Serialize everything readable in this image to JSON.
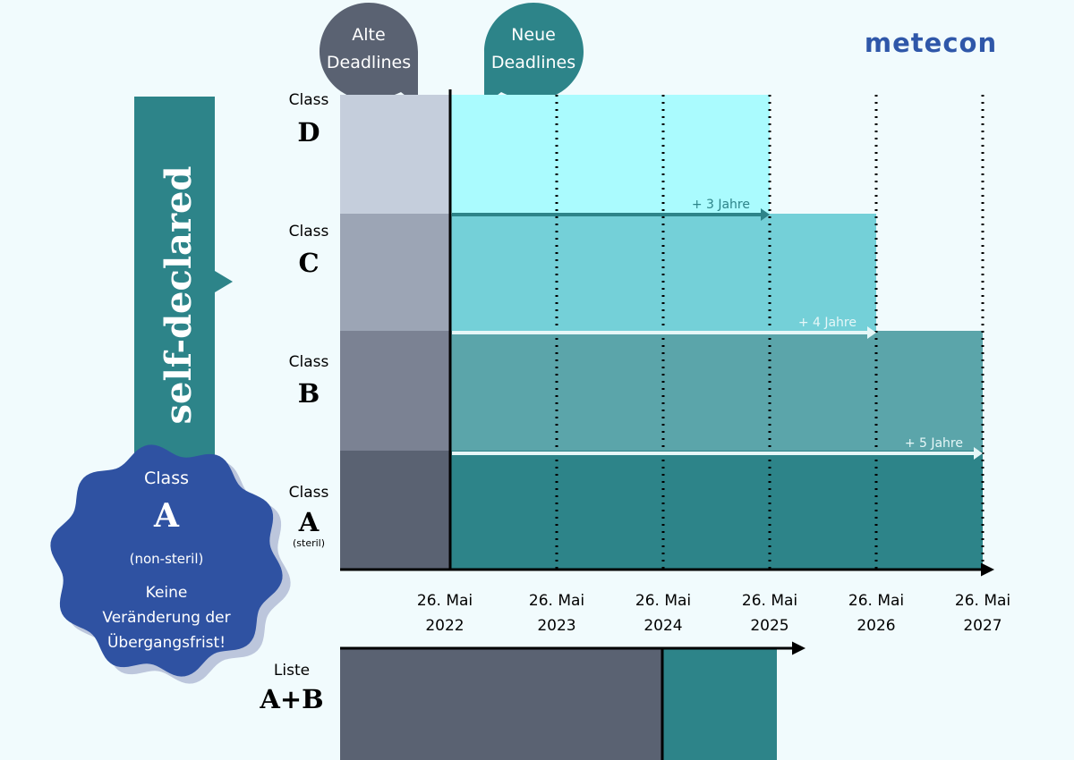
{
  "brand": {
    "logo_text": "metecon",
    "color": "#2f57a9"
  },
  "bubbles": {
    "old": {
      "line1": "Alte",
      "line2": "Deadlines",
      "color": "#5a6272"
    },
    "new": {
      "line1": "Neue",
      "line2": "Deadlines",
      "color": "#2d8489"
    }
  },
  "self_declared": {
    "label": "self-declared",
    "color": "#2d8489"
  },
  "class_a_nonsterile": {
    "class_word": "Class",
    "letter": "A",
    "qualifier": "(non-steril)",
    "note_line1": "Keine",
    "note_line2": "Veränderung der",
    "note_line3": "Übergangsfrist!",
    "color": "#2f52a2"
  },
  "rows": [
    {
      "class_word": "Class",
      "letter": "D",
      "qualifier": "",
      "gray_color": "#c5cedc",
      "teal_color": "#aafbfe",
      "end_year": 2025
    },
    {
      "class_word": "Class",
      "letter": "C",
      "qualifier": "",
      "gray_color": "#9ca5b5",
      "teal_color": "#74d0d8",
      "end_year": 2026
    },
    {
      "class_word": "Class",
      "letter": "B",
      "qualifier": "",
      "gray_color": "#7b8293",
      "teal_color": "#5ba5aa",
      "end_year": 2027
    },
    {
      "class_word": "Class",
      "letter": "A",
      "qualifier": "(steril)",
      "gray_color": "#5a6272",
      "teal_color": "#2d8489",
      "end_year": 2027
    }
  ],
  "extensions": [
    {
      "label": "+ 3 Jahre",
      "to_year": 2025,
      "color": "#2d8489"
    },
    {
      "label": "+ 4 Jahre",
      "to_year": 2026,
      "color": "#e6f7f8"
    },
    {
      "label": "+ 5 Jahre",
      "to_year": 2027,
      "color": "#e6f7f8"
    }
  ],
  "timeline": [
    {
      "year": 2022,
      "line1": "26. Mai",
      "line2": "2022"
    },
    {
      "year": 2023,
      "line1": "26. Mai",
      "line2": "2023"
    },
    {
      "year": 2024,
      "line1": "26. Mai",
      "line2": "2024"
    },
    {
      "year": 2025,
      "line1": "26. Mai",
      "line2": "2025"
    },
    {
      "year": 2026,
      "line1": "26. Mai",
      "line2": "2026"
    },
    {
      "year": 2027,
      "line1": "26. Mai",
      "line2": "2027"
    }
  ],
  "liste": {
    "label_word": "Liste",
    "label_letters": "A+B",
    "change_year": 2024,
    "end_year": 2025,
    "old_color": "#5a6272",
    "new_color": "#2d8489"
  }
}
